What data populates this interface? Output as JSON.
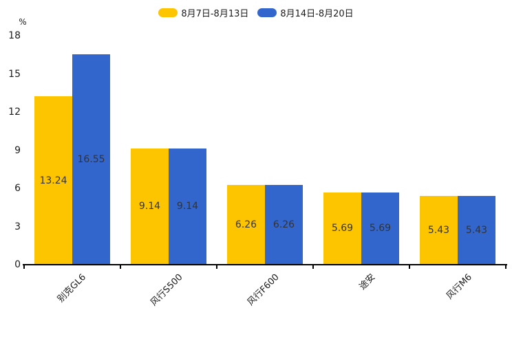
{
  "chart_data": {
    "type": "bar",
    "title": "",
    "xlabel": "",
    "ylabel": "%",
    "categories": [
      "别克GL6",
      "风行S500",
      "风行F600",
      "途安",
      "风行M6"
    ],
    "series": [
      {
        "name": "8月7日-8月13日",
        "color": "#FDC500",
        "values": [
          13.24,
          9.14,
          6.26,
          5.69,
          5.43
        ]
      },
      {
        "name": "8月14日-8月20日",
        "color": "#3366CC",
        "values": [
          16.55,
          9.14,
          6.26,
          5.69,
          5.43
        ]
      }
    ],
    "yticks": [
      0,
      3,
      6,
      9,
      12,
      15,
      18
    ],
    "ylim": [
      0,
      18
    ],
    "grid": false,
    "legend_position": "top-center",
    "value_labels": "inside-middle",
    "value_label_color": "#333333",
    "axis_color": "#000000"
  }
}
